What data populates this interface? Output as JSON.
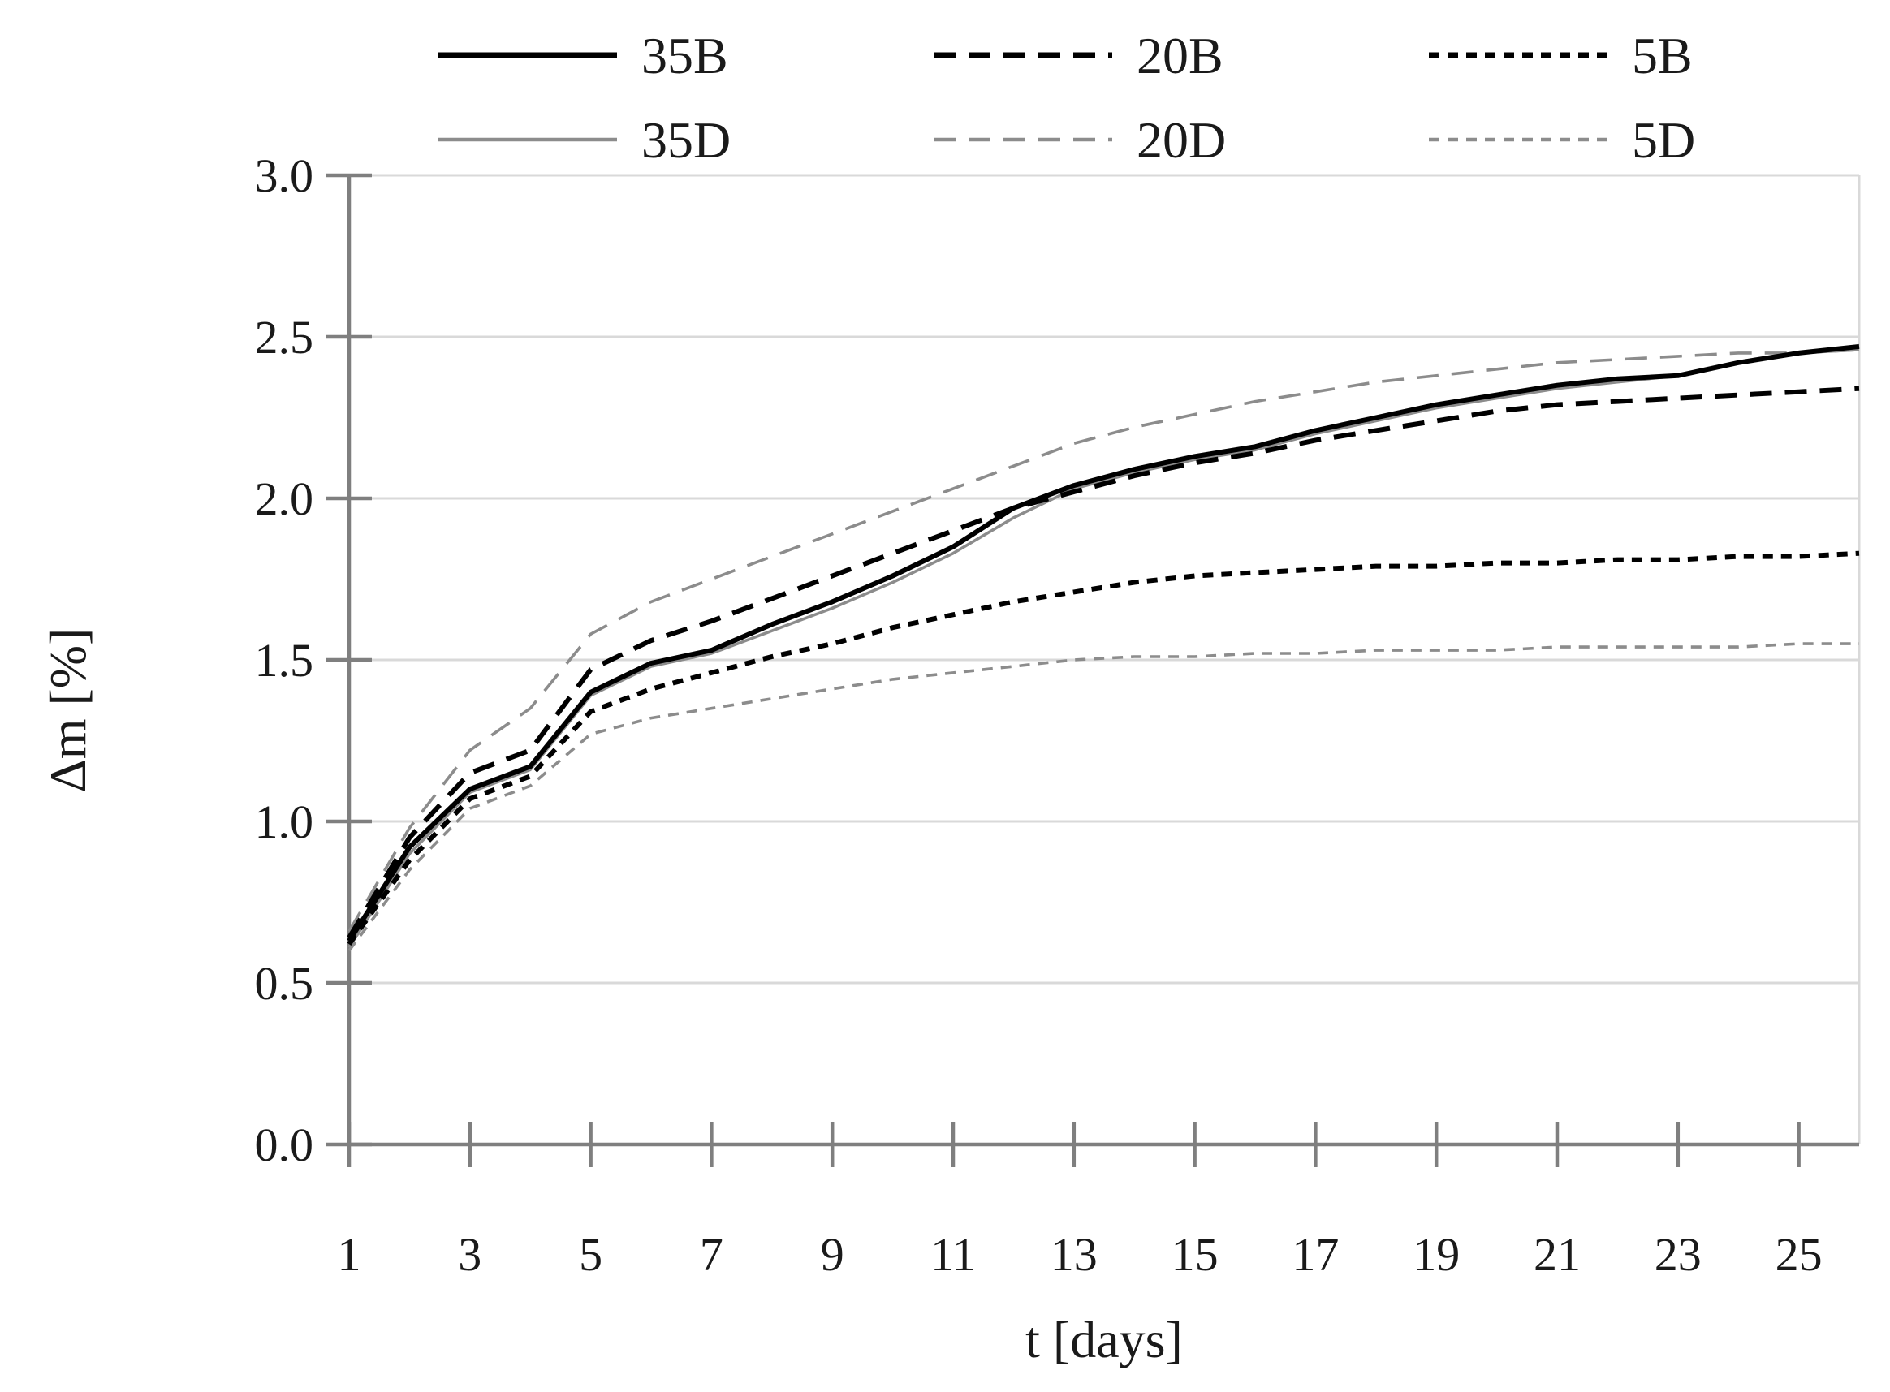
{
  "chart_data": {
    "type": "line",
    "title": "",
    "xlabel": "t [days]",
    "ylabel": "Δm [%]",
    "xlim": [
      1,
      26
    ],
    "ylim": [
      0.0,
      3.0
    ],
    "grid": "horizontal gridlines at every 0.5",
    "legend_position": "top-center, 2 rows x 3 columns",
    "background_color": "#ffffff",
    "axis_color": "#7f7f7f",
    "gridline_color": "#d9d9d9",
    "plot_right_border_color": "#d9d9d9",
    "x": [
      1,
      2,
      3,
      4,
      5,
      6,
      7,
      8,
      9,
      10,
      11,
      12,
      13,
      14,
      15,
      16,
      17,
      18,
      19,
      20,
      21,
      22,
      23,
      24,
      25,
      26
    ],
    "x_ticks": [
      {
        "label": "1",
        "value": 1
      },
      {
        "label": "3",
        "value": 3
      },
      {
        "label": "5",
        "value": 5
      },
      {
        "label": "7",
        "value": 7
      },
      {
        "label": "9",
        "value": 9
      },
      {
        "label": "11",
        "value": 11
      },
      {
        "label": "13",
        "value": 13
      },
      {
        "label": "15",
        "value": 15
      },
      {
        "label": "17",
        "value": 17
      },
      {
        "label": "19",
        "value": 19
      },
      {
        "label": "21",
        "value": 21
      },
      {
        "label": "23",
        "value": 23
      },
      {
        "label": "25",
        "value": 25
      }
    ],
    "y_ticks": [
      {
        "label": "0.0",
        "value": 0.0
      },
      {
        "label": "0.5",
        "value": 0.5
      },
      {
        "label": "1.0",
        "value": 1.0
      },
      {
        "label": "1.5",
        "value": 1.5
      },
      {
        "label": "2.0",
        "value": 2.0
      },
      {
        "label": "2.5",
        "value": 2.5
      },
      {
        "label": "3.0",
        "value": 3.0
      }
    ],
    "legend_order": [
      "35B",
      "20B",
      "5B",
      "35D",
      "20D",
      "5D"
    ],
    "series": [
      {
        "name": "35B",
        "color": "#000000",
        "line_style": "solid",
        "thickness": "thick",
        "values": [
          0.63,
          0.92,
          1.1,
          1.17,
          1.4,
          1.49,
          1.53,
          1.61,
          1.68,
          1.76,
          1.85,
          1.97,
          2.04,
          2.09,
          2.13,
          2.16,
          2.21,
          2.25,
          2.29,
          2.32,
          2.35,
          2.37,
          2.38,
          2.42,
          2.45,
          2.47
        ]
      },
      {
        "name": "20B",
        "color": "#000000",
        "line_style": "long-dash",
        "thickness": "thick",
        "values": [
          0.64,
          0.95,
          1.15,
          1.22,
          1.47,
          1.56,
          1.62,
          1.69,
          1.76,
          1.83,
          1.9,
          1.97,
          2.02,
          2.07,
          2.11,
          2.14,
          2.18,
          2.21,
          2.24,
          2.27,
          2.29,
          2.3,
          2.31,
          2.32,
          2.33,
          2.34
        ]
      },
      {
        "name": "5B",
        "color": "#000000",
        "line_style": "short-dash",
        "thickness": "thick",
        "values": [
          0.62,
          0.88,
          1.07,
          1.14,
          1.34,
          1.41,
          1.46,
          1.51,
          1.55,
          1.6,
          1.64,
          1.68,
          1.71,
          1.74,
          1.76,
          1.77,
          1.78,
          1.79,
          1.79,
          1.8,
          1.8,
          1.81,
          1.81,
          1.82,
          1.82,
          1.83
        ]
      },
      {
        "name": "35D",
        "color": "#8c8c8c",
        "line_style": "solid",
        "thickness": "thin",
        "values": [
          0.61,
          0.9,
          1.09,
          1.16,
          1.39,
          1.48,
          1.52,
          1.59,
          1.66,
          1.74,
          1.83,
          1.94,
          2.03,
          2.08,
          2.12,
          2.15,
          2.2,
          2.24,
          2.28,
          2.31,
          2.34,
          2.36,
          2.38,
          2.42,
          2.45,
          2.46
        ]
      },
      {
        "name": "20D",
        "color": "#8c8c8c",
        "line_style": "long-dash",
        "thickness": "thin",
        "values": [
          0.66,
          0.98,
          1.22,
          1.35,
          1.58,
          1.68,
          1.75,
          1.82,
          1.89,
          1.96,
          2.03,
          2.1,
          2.17,
          2.22,
          2.26,
          2.3,
          2.33,
          2.36,
          2.38,
          2.4,
          2.42,
          2.43,
          2.44,
          2.45,
          2.45,
          2.46
        ]
      },
      {
        "name": "5D",
        "color": "#8c8c8c",
        "line_style": "short-dash",
        "thickness": "thin",
        "values": [
          0.6,
          0.85,
          1.04,
          1.11,
          1.27,
          1.32,
          1.35,
          1.38,
          1.41,
          1.44,
          1.46,
          1.48,
          1.5,
          1.51,
          1.51,
          1.52,
          1.52,
          1.53,
          1.53,
          1.53,
          1.54,
          1.54,
          1.54,
          1.54,
          1.55,
          1.55
        ]
      }
    ]
  }
}
